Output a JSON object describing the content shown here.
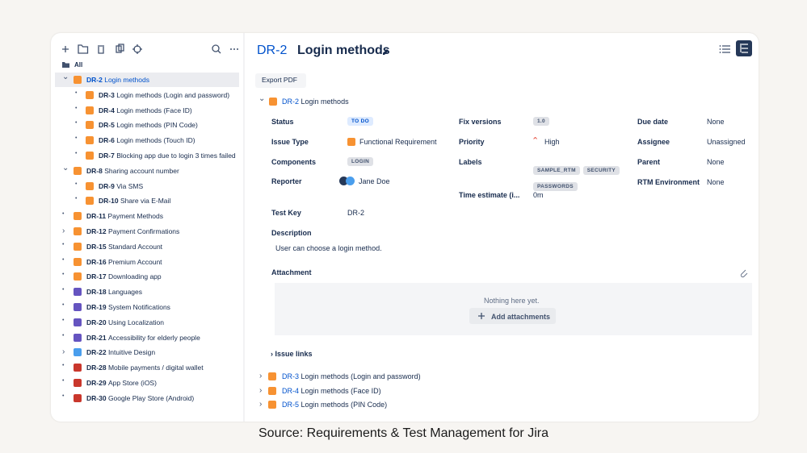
{
  "toolbar_all": "All",
  "tree": [
    {
      "key": "DR-2",
      "title": "Login methods",
      "level": 0,
      "expanded": true,
      "selected": true,
      "color": "#f79232"
    },
    {
      "key": "DR-3",
      "title": "Login methods (Login and password)",
      "level": 1,
      "color": "#f79232"
    },
    {
      "key": "DR-4",
      "title": "Login methods (Face ID)",
      "level": 1,
      "color": "#f79232"
    },
    {
      "key": "DR-5",
      "title": "Login methods (PIN Code)",
      "level": 1,
      "color": "#f79232"
    },
    {
      "key": "DR-6",
      "title": "Login methods (Touch ID)",
      "level": 1,
      "color": "#f79232"
    },
    {
      "key": "DR-7",
      "title": "Blocking app due to login 3 times failed",
      "level": 1,
      "color": "#f79232"
    },
    {
      "key": "DR-8",
      "title": "Sharing account number",
      "level": 0,
      "expanded": true,
      "color": "#f79232"
    },
    {
      "key": "DR-9",
      "title": "Via SMS",
      "level": 1,
      "color": "#f79232"
    },
    {
      "key": "DR-10",
      "title": "Share via E-Mail",
      "level": 1,
      "color": "#f79232"
    },
    {
      "key": "DR-11",
      "title": "Payment Methods",
      "level": 0,
      "color": "#f79232"
    },
    {
      "key": "DR-12",
      "title": "Payment Confirmations",
      "level": 0,
      "expanded": false,
      "color": "#f79232"
    },
    {
      "key": "DR-15",
      "title": "Standard Account",
      "level": 0,
      "color": "#f79232"
    },
    {
      "key": "DR-16",
      "title": "Premium Account",
      "level": 0,
      "color": "#f79232"
    },
    {
      "key": "DR-17",
      "title": "Downloading app",
      "level": 0,
      "color": "#f79232"
    },
    {
      "key": "DR-18",
      "title": "Languages",
      "level": 0,
      "color": "#6554c0"
    },
    {
      "key": "DR-19",
      "title": "System Notifications",
      "level": 0,
      "color": "#6554c0"
    },
    {
      "key": "DR-20",
      "title": "Using Localization",
      "level": 0,
      "color": "#6554c0"
    },
    {
      "key": "DR-21",
      "title": "Accessibility for elderly people",
      "level": 0,
      "color": "#6554c0"
    },
    {
      "key": "DR-22",
      "title": "Intuitive Design",
      "level": 0,
      "expanded": false,
      "color": "#4a9eed"
    },
    {
      "key": "DR-28",
      "title": "Mobile payments / digital wallet",
      "level": 0,
      "color": "#c9372c"
    },
    {
      "key": "DR-29",
      "title": "App Store (iOS)",
      "level": 0,
      "color": "#c9372c"
    },
    {
      "key": "DR-30",
      "title": "Google Play Store (Android)",
      "level": 0,
      "color": "#c9372c"
    }
  ],
  "detail": {
    "key": "DR-2",
    "title": "Login methods",
    "export": "Export PDF",
    "issue": {
      "key": "DR-2",
      "title": "Login methods",
      "color": "#f79232"
    },
    "columns": [
      [
        {
          "label": "Status",
          "value": "TO DO",
          "style": "status"
        },
        {
          "label": "Issue Type",
          "value": "Functional Requirement",
          "icon": "#f79232"
        },
        {
          "label": "Components",
          "value": "LOGIN",
          "style": "tag"
        },
        {
          "label": "Reporter",
          "value": "Jane Doe",
          "avatar": true
        },
        {
          "label": "Test Key",
          "value": "DR-2"
        }
      ],
      [
        {
          "label": "Fix versions",
          "value": "1.0",
          "style": "tag"
        },
        {
          "label": "Priority",
          "value": "High",
          "arrow": "#e5493a"
        },
        {
          "label": "Labels",
          "values": [
            "SAMPLE_RTM",
            "SECURITY",
            "PASSWORDS"
          ],
          "style": "tag"
        },
        {
          "label": "Time estimate (i...",
          "value": "0m"
        }
      ],
      [
        {
          "label": "Due date",
          "value": "None"
        },
        {
          "label": "Assignee",
          "value": "Unassigned"
        },
        {
          "label": "Parent",
          "value": "None"
        },
        {
          "label": "RTM Environment",
          "value": "None"
        }
      ]
    ],
    "description": {
      "label": "Description",
      "text": "User can choose a login method."
    },
    "attachment": {
      "label": "Attachment",
      "empty": "Nothing here yet.",
      "button": "Add attachments"
    },
    "issue_links": "Issue links",
    "links": [
      {
        "key": "DR-3",
        "title": "Login methods (Login and password)",
        "color": "#f79232"
      },
      {
        "key": "DR-4",
        "title": "Login methods (Face ID)",
        "color": "#f79232"
      },
      {
        "key": "DR-5",
        "title": "Login methods (PIN Code)",
        "color": "#f79232"
      }
    ]
  },
  "caption": "Source:  Requirements & Test Management for Jira"
}
